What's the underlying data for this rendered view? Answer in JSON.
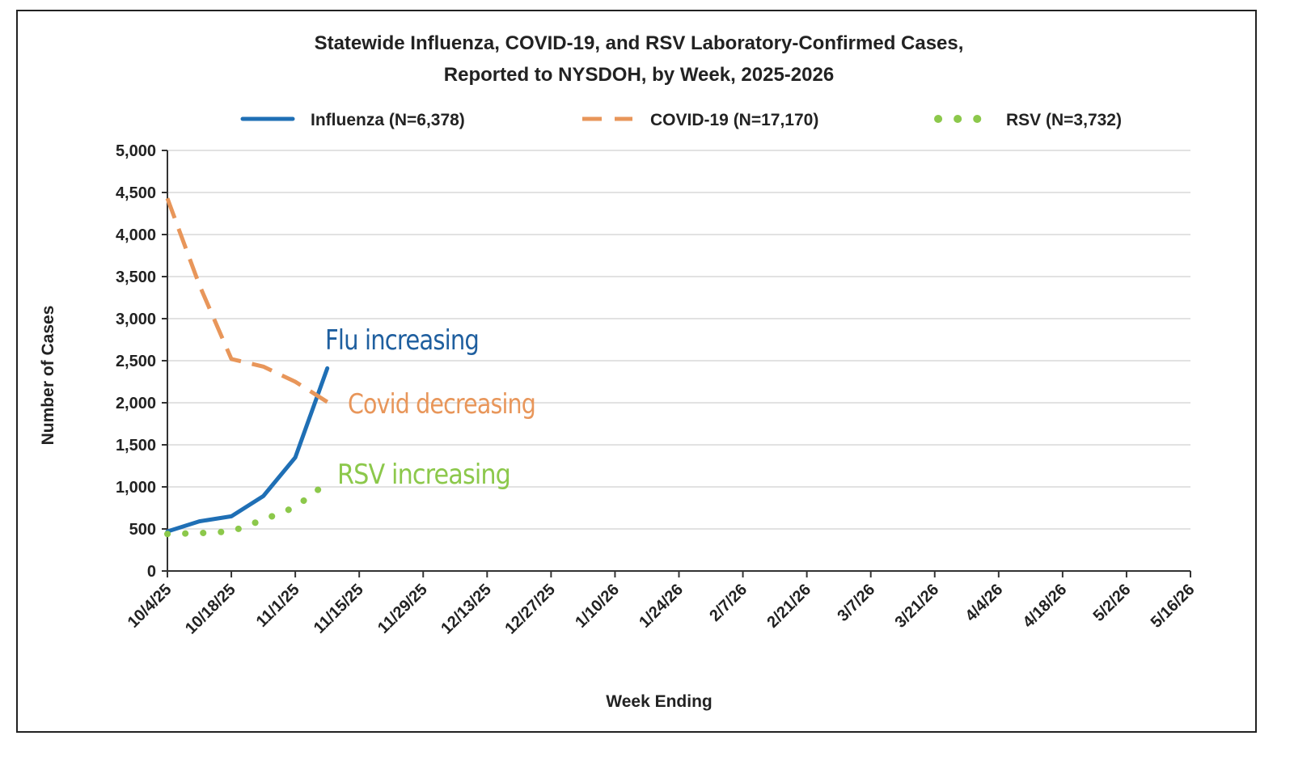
{
  "chart_data": {
    "type": "line",
    "title": "Statewide Influenza,  COVID-19, and RSV Laboratory-Confirmed  Cases,",
    "subtitle": "Reported to NYSDOH, by Week, 2025-2026",
    "xlabel": "Week Ending",
    "ylabel": "Number of Cases",
    "ylim": [
      0,
      5000
    ],
    "ytick_values": [
      0,
      500,
      1000,
      1500,
      2000,
      2500,
      3000,
      3500,
      4000,
      4500,
      5000
    ],
    "ytick_labels": [
      "0",
      "500",
      "1,000",
      "1,500",
      "2,000",
      "2,500",
      "3,000",
      "3,500",
      "4,000",
      "4,500",
      "5,000"
    ],
    "xtick_labels": [
      "10/4/25",
      "10/18/25",
      "11/1/25",
      "11/15/25",
      "11/29/25",
      "12/13/25",
      "12/27/25",
      "1/10/26",
      "1/24/26",
      "2/7/26",
      "2/21/26",
      "3/7/26",
      "3/21/26",
      "4/4/26",
      "4/18/26",
      "5/2/26",
      "5/16/26"
    ],
    "grid": true,
    "legend_position": "top",
    "series": [
      {
        "name": "Influenza (N=6,378)",
        "style": "solid",
        "color": "#1f6fb5",
        "values": [
          470,
          590,
          650,
          890,
          1350,
          2410
        ]
      },
      {
        "name": "COVID-19 (N=17,170)",
        "style": "dashed",
        "color": "#e8965a",
        "values": [
          4430,
          3400,
          2520,
          2430,
          2250,
          2010
        ]
      },
      {
        "name": "RSV (N=3,732)",
        "style": "dotted",
        "color": "#8cc84b",
        "values": [
          440,
          450,
          470,
          610,
          760,
          1050
        ]
      }
    ],
    "annotations": [
      {
        "text": "Flu increasing",
        "color": "#1f5f9f"
      },
      {
        "text": "Covid decreasing",
        "color": "#e8965a"
      },
      {
        "text": "RSV increasing",
        "color": "#8cc84b"
      }
    ]
  }
}
